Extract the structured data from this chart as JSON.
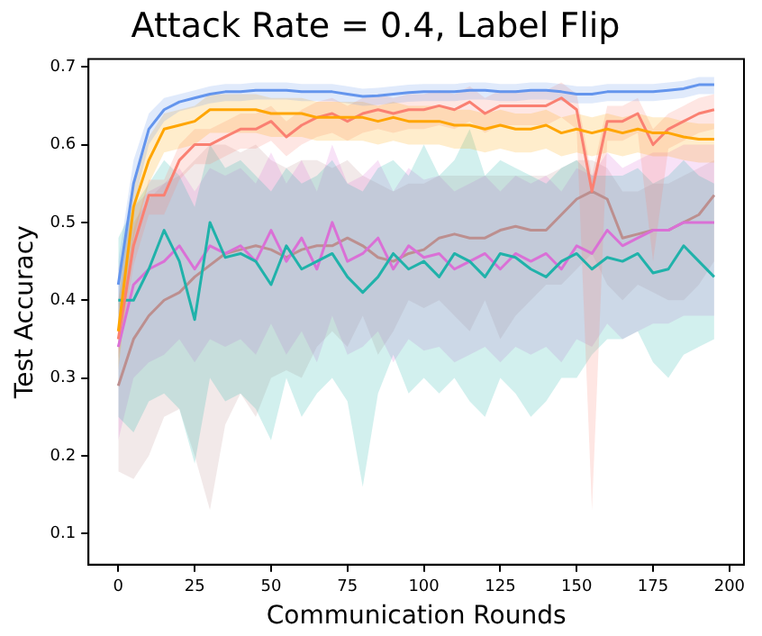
{
  "chart_data": {
    "type": "line",
    "title": "Attack Rate = 0.4, Label Flip",
    "xlabel": "Communication Rounds",
    "ylabel": "Test Accuracy",
    "x": [
      0,
      5,
      10,
      15,
      20,
      25,
      30,
      35,
      40,
      45,
      50,
      55,
      60,
      65,
      70,
      75,
      80,
      85,
      90,
      95,
      100,
      105,
      110,
      115,
      120,
      125,
      130,
      135,
      140,
      145,
      150,
      155,
      160,
      165,
      170,
      175,
      180,
      185,
      190,
      195
    ],
    "xlim": [
      -9.75,
      204.75
    ],
    "xticks": [
      0,
      25,
      50,
      75,
      100,
      125,
      150,
      175,
      200
    ],
    "ylim": [
      0.06,
      0.71
    ],
    "yticks": [
      0.1,
      0.2,
      0.3,
      0.4,
      0.5,
      0.6,
      0.7
    ],
    "grid": false,
    "legend": false,
    "marker": "none",
    "line_style": "solid",
    "series": [
      {
        "color": "#6495ed",
        "values": [
          0.42,
          0.55,
          0.62,
          0.645,
          0.655,
          0.66,
          0.665,
          0.668,
          0.668,
          0.67,
          0.67,
          0.67,
          0.668,
          0.668,
          0.668,
          0.665,
          0.662,
          0.663,
          0.665,
          0.667,
          0.668,
          0.668,
          0.668,
          0.67,
          0.67,
          0.668,
          0.668,
          0.67,
          0.67,
          0.668,
          0.665,
          0.665,
          0.668,
          0.668,
          0.668,
          0.668,
          0.67,
          0.672,
          0.677,
          0.677
        ],
        "lower": [
          0.38,
          0.52,
          0.6,
          0.63,
          0.643,
          0.648,
          0.653,
          0.656,
          0.656,
          0.658,
          0.658,
          0.658,
          0.656,
          0.656,
          0.656,
          0.653,
          0.65,
          0.651,
          0.653,
          0.655,
          0.656,
          0.656,
          0.656,
          0.658,
          0.658,
          0.656,
          0.656,
          0.658,
          0.658,
          0.656,
          0.653,
          0.653,
          0.656,
          0.656,
          0.656,
          0.656,
          0.658,
          0.66,
          0.665,
          0.665
        ],
        "upper": [
          0.45,
          0.58,
          0.64,
          0.66,
          0.665,
          0.67,
          0.675,
          0.678,
          0.678,
          0.68,
          0.68,
          0.68,
          0.678,
          0.678,
          0.678,
          0.675,
          0.672,
          0.673,
          0.675,
          0.677,
          0.678,
          0.678,
          0.678,
          0.68,
          0.68,
          0.678,
          0.678,
          0.68,
          0.68,
          0.678,
          0.675,
          0.675,
          0.678,
          0.678,
          0.678,
          0.678,
          0.68,
          0.682,
          0.687,
          0.687
        ]
      },
      {
        "color": "#ffa500",
        "values": [
          0.36,
          0.52,
          0.58,
          0.62,
          0.625,
          0.63,
          0.645,
          0.645,
          0.645,
          0.645,
          0.64,
          0.64,
          0.64,
          0.635,
          0.635,
          0.635,
          0.635,
          0.63,
          0.635,
          0.63,
          0.63,
          0.63,
          0.625,
          0.625,
          0.62,
          0.625,
          0.62,
          0.62,
          0.625,
          0.615,
          0.62,
          0.615,
          0.62,
          0.615,
          0.62,
          0.615,
          0.615,
          0.61,
          0.607,
          0.607
        ],
        "lower": [
          0.31,
          0.48,
          0.55,
          0.59,
          0.595,
          0.6,
          0.615,
          0.615,
          0.615,
          0.615,
          0.61,
          0.61,
          0.61,
          0.605,
          0.605,
          0.605,
          0.605,
          0.6,
          0.605,
          0.6,
          0.6,
          0.6,
          0.595,
          0.595,
          0.59,
          0.595,
          0.59,
          0.59,
          0.595,
          0.585,
          0.59,
          0.585,
          0.59,
          0.585,
          0.59,
          0.585,
          0.585,
          0.58,
          0.577,
          0.577
        ],
        "upper": [
          0.4,
          0.55,
          0.61,
          0.64,
          0.645,
          0.65,
          0.665,
          0.665,
          0.665,
          0.665,
          0.66,
          0.66,
          0.66,
          0.655,
          0.655,
          0.655,
          0.655,
          0.65,
          0.655,
          0.65,
          0.65,
          0.65,
          0.645,
          0.645,
          0.64,
          0.645,
          0.64,
          0.64,
          0.645,
          0.635,
          0.64,
          0.635,
          0.64,
          0.635,
          0.64,
          0.635,
          0.635,
          0.63,
          0.627,
          0.627
        ]
      },
      {
        "color": "#fa8072",
        "values": [
          0.35,
          0.47,
          0.535,
          0.535,
          0.58,
          0.6,
          0.6,
          0.61,
          0.62,
          0.62,
          0.63,
          0.61,
          0.625,
          0.635,
          0.64,
          0.63,
          0.64,
          0.645,
          0.64,
          0.645,
          0.645,
          0.65,
          0.645,
          0.655,
          0.64,
          0.65,
          0.65,
          0.65,
          0.65,
          0.66,
          0.645,
          0.54,
          0.63,
          0.63,
          0.64,
          0.6,
          0.62,
          0.63,
          0.64,
          0.645
        ],
        "lower": [
          0.325,
          0.445,
          0.51,
          0.51,
          0.555,
          0.575,
          0.575,
          0.585,
          0.595,
          0.595,
          0.605,
          0.585,
          0.6,
          0.61,
          0.615,
          0.605,
          0.615,
          0.62,
          0.615,
          0.62,
          0.62,
          0.625,
          0.62,
          0.63,
          0.615,
          0.625,
          0.625,
          0.625,
          0.625,
          0.635,
          0.62,
          0.13,
          0.605,
          0.605,
          0.615,
          0.45,
          0.595,
          0.605,
          0.615,
          0.62
        ],
        "upper": [
          0.37,
          0.49,
          0.555,
          0.555,
          0.6,
          0.62,
          0.62,
          0.63,
          0.64,
          0.64,
          0.65,
          0.63,
          0.645,
          0.655,
          0.66,
          0.65,
          0.66,
          0.665,
          0.66,
          0.665,
          0.665,
          0.67,
          0.665,
          0.675,
          0.66,
          0.67,
          0.67,
          0.67,
          0.67,
          0.68,
          0.665,
          0.56,
          0.65,
          0.65,
          0.66,
          0.62,
          0.64,
          0.65,
          0.66,
          0.665
        ]
      },
      {
        "color": "#20b2aa",
        "values": [
          0.4,
          0.4,
          0.44,
          0.49,
          0.45,
          0.375,
          0.5,
          0.455,
          0.46,
          0.45,
          0.42,
          0.47,
          0.44,
          0.45,
          0.46,
          0.43,
          0.41,
          0.43,
          0.46,
          0.44,
          0.45,
          0.43,
          0.46,
          0.45,
          0.43,
          0.46,
          0.455,
          0.44,
          0.43,
          0.45,
          0.46,
          0.44,
          0.455,
          0.45,
          0.46,
          0.435,
          0.44,
          0.47,
          0.45,
          0.43
        ],
        "lower": [
          0.25,
          0.23,
          0.27,
          0.28,
          0.26,
          0.19,
          0.3,
          0.27,
          0.28,
          0.26,
          0.22,
          0.3,
          0.25,
          0.28,
          0.3,
          0.27,
          0.16,
          0.28,
          0.33,
          0.28,
          0.3,
          0.28,
          0.3,
          0.27,
          0.25,
          0.3,
          0.28,
          0.25,
          0.27,
          0.3,
          0.3,
          0.33,
          0.35,
          0.35,
          0.36,
          0.32,
          0.3,
          0.33,
          0.34,
          0.35
        ],
        "upper": [
          0.48,
          0.52,
          0.55,
          0.58,
          0.56,
          0.52,
          0.6,
          0.57,
          0.58,
          0.56,
          0.54,
          0.57,
          0.55,
          0.56,
          0.58,
          0.55,
          0.54,
          0.57,
          0.58,
          0.56,
          0.6,
          0.56,
          0.58,
          0.62,
          0.56,
          0.58,
          0.57,
          0.56,
          0.55,
          0.57,
          0.58,
          0.56,
          0.56,
          0.56,
          0.57,
          0.55,
          0.56,
          0.58,
          0.56,
          0.55
        ]
      },
      {
        "color": "#da70d6",
        "values": [
          0.34,
          0.42,
          0.44,
          0.45,
          0.47,
          0.44,
          0.47,
          0.46,
          0.47,
          0.45,
          0.49,
          0.45,
          0.48,
          0.44,
          0.5,
          0.45,
          0.46,
          0.48,
          0.44,
          0.47,
          0.455,
          0.46,
          0.44,
          0.45,
          0.46,
          0.44,
          0.46,
          0.45,
          0.46,
          0.44,
          0.47,
          0.46,
          0.49,
          0.47,
          0.48,
          0.49,
          0.49,
          0.5,
          0.5,
          0.5
        ],
        "lower": [
          0.22,
          0.3,
          0.32,
          0.33,
          0.35,
          0.32,
          0.35,
          0.34,
          0.35,
          0.33,
          0.37,
          0.33,
          0.36,
          0.32,
          0.38,
          0.33,
          0.34,
          0.36,
          0.32,
          0.35,
          0.335,
          0.34,
          0.32,
          0.33,
          0.34,
          0.32,
          0.34,
          0.33,
          0.34,
          0.32,
          0.35,
          0.34,
          0.37,
          0.35,
          0.36,
          0.37,
          0.37,
          0.38,
          0.38,
          0.38
        ],
        "upper": [
          0.44,
          0.52,
          0.54,
          0.55,
          0.57,
          0.54,
          0.57,
          0.56,
          0.57,
          0.55,
          0.59,
          0.55,
          0.58,
          0.54,
          0.6,
          0.55,
          0.56,
          0.58,
          0.54,
          0.57,
          0.555,
          0.56,
          0.54,
          0.55,
          0.56,
          0.54,
          0.56,
          0.55,
          0.56,
          0.54,
          0.57,
          0.56,
          0.59,
          0.57,
          0.58,
          0.59,
          0.59,
          0.6,
          0.6,
          0.6
        ]
      },
      {
        "color": "#bc8f8f",
        "values": [
          0.29,
          0.35,
          0.38,
          0.4,
          0.41,
          0.43,
          0.445,
          0.46,
          0.465,
          0.47,
          0.465,
          0.455,
          0.465,
          0.47,
          0.47,
          0.48,
          0.47,
          0.455,
          0.45,
          0.46,
          0.465,
          0.48,
          0.485,
          0.48,
          0.48,
          0.49,
          0.495,
          0.49,
          0.49,
          0.51,
          0.53,
          0.54,
          0.53,
          0.48,
          0.485,
          0.49,
          0.49,
          0.5,
          0.51,
          0.535
        ],
        "lower": [
          0.18,
          0.17,
          0.2,
          0.25,
          0.26,
          0.2,
          0.13,
          0.24,
          0.28,
          0.25,
          0.3,
          0.31,
          0.3,
          0.34,
          0.36,
          0.34,
          0.38,
          0.33,
          0.36,
          0.4,
          0.39,
          0.4,
          0.38,
          0.36,
          0.4,
          0.35,
          0.38,
          0.4,
          0.42,
          0.42,
          0.44,
          0.46,
          0.42,
          0.4,
          0.42,
          0.41,
          0.4,
          0.4,
          0.42,
          0.45
        ],
        "upper": [
          0.4,
          0.5,
          0.53,
          0.55,
          0.56,
          0.58,
          0.6,
          0.6,
          0.59,
          0.6,
          0.58,
          0.57,
          0.58,
          0.58,
          0.57,
          0.58,
          0.56,
          0.55,
          0.54,
          0.55,
          0.55,
          0.56,
          0.56,
          0.56,
          0.56,
          0.56,
          0.56,
          0.56,
          0.56,
          0.57,
          0.58,
          0.58,
          0.57,
          0.54,
          0.54,
          0.55,
          0.55,
          0.56,
          0.57,
          0.58
        ]
      }
    ]
  }
}
